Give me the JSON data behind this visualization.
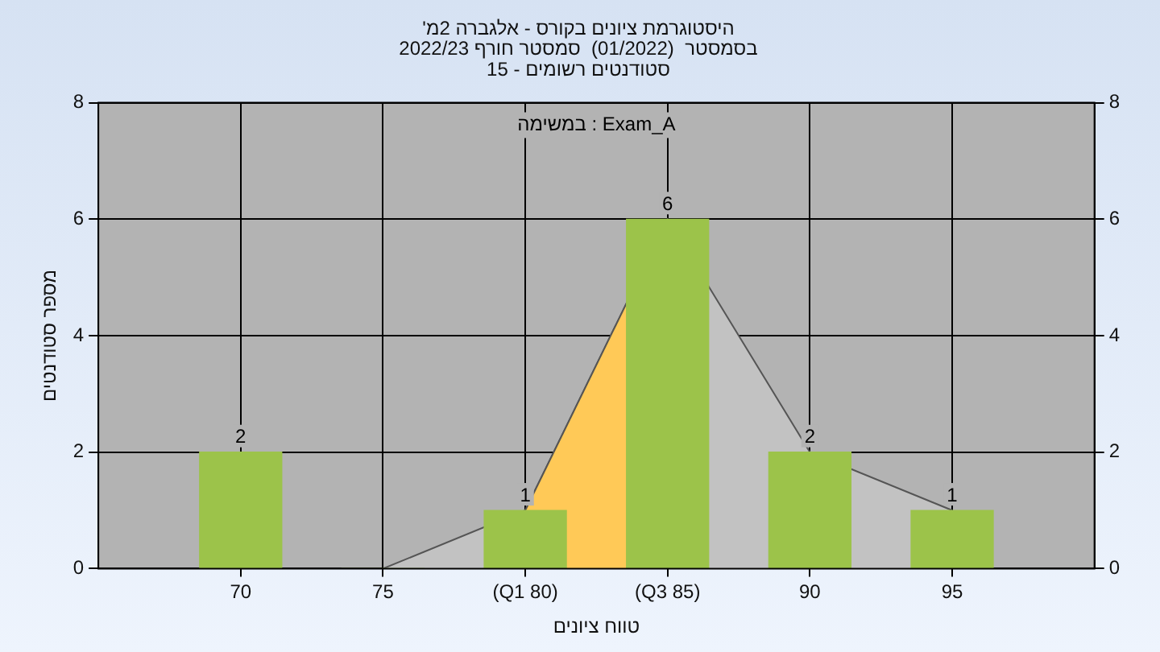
{
  "chart_data": {
    "type": "bar",
    "title": "'היסטוגרמת ציונים בקורס - אלגברה 2מ\nבסמסטר  (01/2022)  סמסטר חורף 2022/23\nסטודנטים רשומים - 15",
    "xlabel": "טווח ציונים",
    "ylabel": "מספר סטודנטים",
    "annotations": [
      "במשימה : Exam_A"
    ],
    "series": [
      {
        "type": "area",
        "color": "#c2c2c2",
        "x": [
          75,
          80,
          85,
          90,
          95
        ],
        "values": [
          0,
          1,
          6,
          2,
          1
        ]
      },
      {
        "type": "area",
        "color": "#ffc957",
        "x": [
          80,
          85
        ],
        "values": [
          1,
          6
        ]
      },
      {
        "color": "#9cc34a",
        "x": [
          70,
          75,
          80,
          85,
          90,
          95
        ],
        "values": [
          2,
          0,
          1,
          6,
          2,
          1
        ],
        "value_labels": [
          "2",
          null,
          "1",
          "6",
          "2",
          "1"
        ]
      }
    ],
    "xlim": [
      65,
      100
    ],
    "xticks": [
      70,
      75,
      {
        "value": 80,
        "label": "(Q1 80)"
      },
      {
        "value": 85,
        "label": "(Q3 85)"
      },
      90,
      95
    ],
    "ylim": [
      0,
      8
    ],
    "yticks": [
      0,
      2,
      4,
      6,
      8
    ],
    "y2lim": [
      0,
      8
    ],
    "y2ticks": [
      0,
      2,
      4,
      6,
      8
    ],
    "grid": true,
    "legend": false
  }
}
